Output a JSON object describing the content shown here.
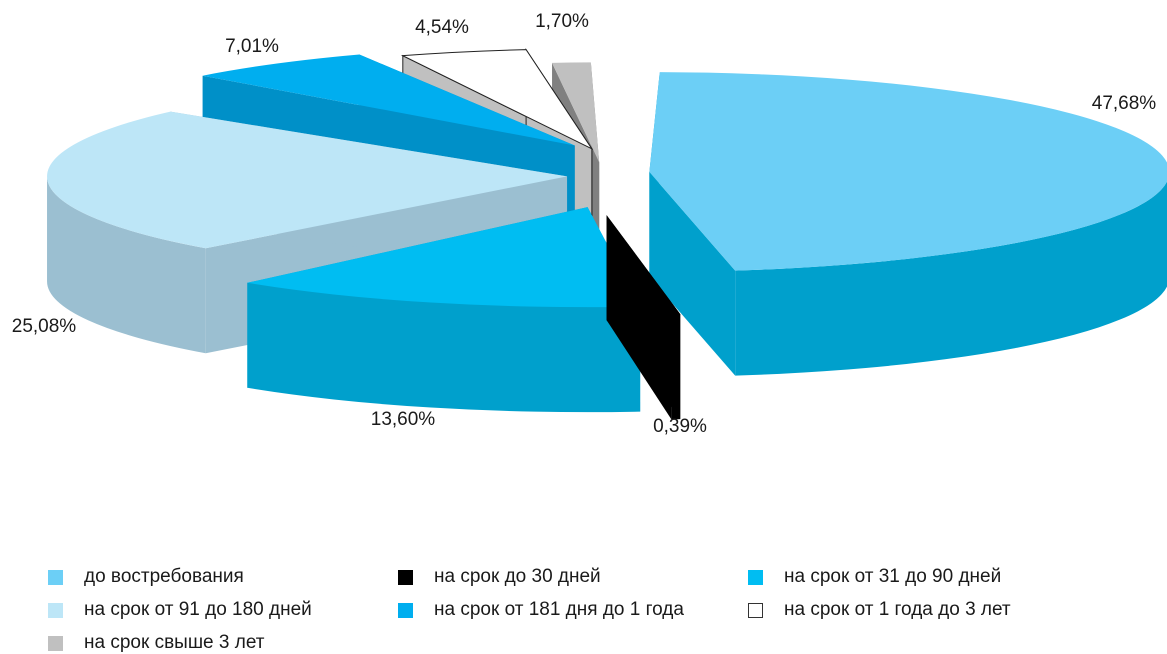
{
  "chart_data": {
    "type": "pie",
    "style": "3d-exploded",
    "series": [
      {
        "name": "до востребования",
        "value": 47.68,
        "label": "47,68%",
        "color": "#6ccff6",
        "side_color": "#00a0cc"
      },
      {
        "name": "на срок до 30 дней",
        "value": 0.39,
        "label": "0,39%",
        "color": "#000000",
        "side_color": "#000000"
      },
      {
        "name": "на срок от 31 до 90 дней",
        "value": 13.6,
        "label": "13,60%",
        "color": "#00bdf2",
        "side_color": "#00a0cc"
      },
      {
        "name": "на срок от 91  до 180 дней",
        "value": 25.08,
        "label": "25,08%",
        "color": "#bde6f7",
        "side_color": "#9bbfd1"
      },
      {
        "name": "на срок от 181 дня до 1 года",
        "value": 7.01,
        "label": "7,01%",
        "color": "#00aeef",
        "side_color": "#0090c8"
      },
      {
        "name": "на срок от 1 года до 3 лет",
        "value": 4.54,
        "label": "4,54%",
        "color": "#ffffff",
        "side_color": "#c0c0c0"
      },
      {
        "name": "на срок свыше 3 лет",
        "value": 1.7,
        "label": "1,70%",
        "color": "#c0c0c0",
        "side_color": "#808080"
      }
    ],
    "legend": {
      "placement": "bottom",
      "items": [
        {
          "label": "до востребования",
          "color": "#6ccff6",
          "border": "none"
        },
        {
          "label": "на срок до 30 дней",
          "color": "#000000",
          "border": "none"
        },
        {
          "label": "на срок от 31 до 90 дней",
          "color": "#00bdf2",
          "border": "none"
        },
        {
          "label": "на срок от 91  до 180 дней",
          "color": "#bde6f7",
          "border": "none"
        },
        {
          "label": "на срок от 181 дня до 1 года",
          "color": "#00aeef",
          "border": "none"
        },
        {
          "label": "на срок от 1 года до 3 лет",
          "color": "#ffffff",
          "border": "#333333"
        },
        {
          "label": "на срок свыше 3 лет",
          "color": "#c0c0c0",
          "border": "none"
        }
      ]
    }
  }
}
